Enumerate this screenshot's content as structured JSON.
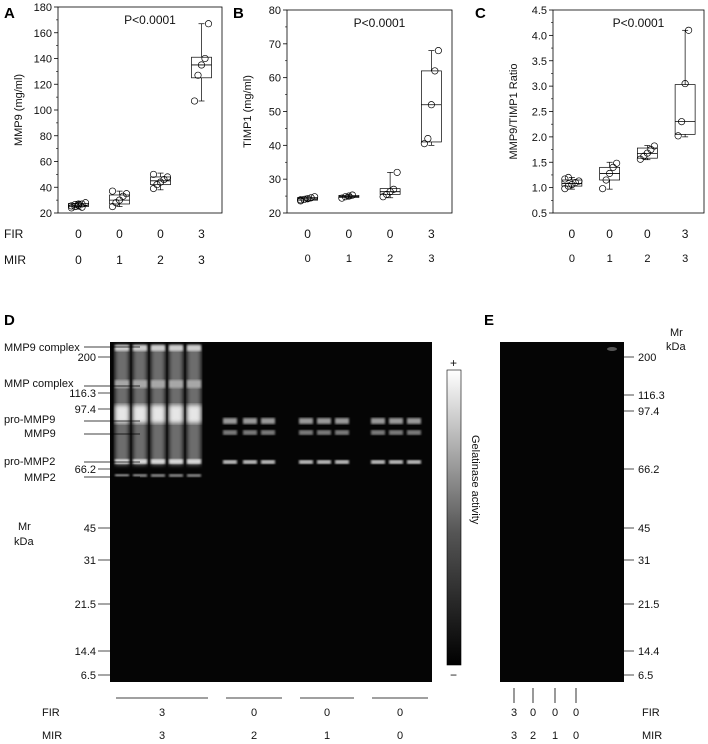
{
  "chart_data": [
    {
      "type": "box",
      "panel": "A",
      "ylabel": "MMP9 (mg/ml)",
      "annotation": "P<0.0001",
      "ylim": [
        20,
        180
      ],
      "yticks": [
        "20",
        "40",
        "60",
        "80",
        "100",
        "120",
        "140",
        "160",
        "180"
      ],
      "groups": [
        {
          "fir": "0",
          "mir": "0",
          "q1": 25,
          "median": 26,
          "q3": 27.5,
          "whisker_low": 23,
          "whisker_high": 29,
          "points": [
            24,
            25,
            26,
            27,
            28,
            25.5,
            26.5,
            27,
            24.5
          ]
        },
        {
          "fir": "0",
          "mir": "1",
          "q1": 27,
          "median": 30,
          "q3": 34,
          "whisker_low": 25,
          "whisker_high": 37,
          "points": [
            25,
            28,
            30,
            33,
            35,
            37
          ]
        },
        {
          "fir": "0",
          "mir": "2",
          "q1": 42,
          "median": 45,
          "q3": 48,
          "whisker_low": 38,
          "whisker_high": 51,
          "points": [
            39,
            42,
            44,
            46,
            48,
            50
          ]
        },
        {
          "fir": "3",
          "mir": "3",
          "q1": 125,
          "median": 135,
          "q3": 141,
          "whisker_low": 107,
          "whisker_high": 167,
          "points": [
            107,
            127,
            135,
            140,
            167
          ]
        }
      ]
    },
    {
      "type": "box",
      "panel": "B",
      "ylabel": "TIMP1 (mg/ml)",
      "annotation": "P<0.0001",
      "ylim": [
        20,
        80
      ],
      "yticks": [
        "20",
        "30",
        "40",
        "50",
        "60",
        "70",
        "80"
      ],
      "groups": [
        {
          "fir": "0",
          "mir": "0",
          "q1": 23.8,
          "median": 24.2,
          "q3": 24.6,
          "whisker_low": 23.5,
          "whisker_high": 25,
          "points": [
            23.6,
            24,
            24.2,
            24.5,
            24.8,
            23.9
          ]
        },
        {
          "fir": "0",
          "mir": "1",
          "q1": 24.6,
          "median": 24.9,
          "q3": 25.2,
          "whisker_low": 24.3,
          "whisker_high": 25.5,
          "points": [
            24.4,
            24.8,
            25,
            25.3
          ]
        },
        {
          "fir": "0",
          "mir": "2",
          "q1": 25.5,
          "median": 26.3,
          "q3": 27.2,
          "whisker_low": 24.5,
          "whisker_high": 32,
          "points": [
            24.8,
            25.5,
            26.3,
            27,
            32
          ]
        },
        {
          "fir": "3",
          "mir": "3",
          "q1": 41,
          "median": 52,
          "q3": 62,
          "whisker_low": 40,
          "whisker_high": 68,
          "points": [
            40.5,
            42,
            52,
            62,
            68
          ]
        }
      ]
    },
    {
      "type": "box",
      "panel": "C",
      "ylabel": "MMP9/TIMP1 Ratio",
      "annotation": "P<0.0001",
      "ylim": [
        0.5,
        4.5
      ],
      "yticks": [
        "0.5",
        "1.0",
        "1.5",
        "2.0",
        "2.5",
        "3.0",
        "3.5",
        "4.0",
        "4.5"
      ],
      "groups": [
        {
          "fir": "0",
          "mir": "0",
          "q1": 1.03,
          "median": 1.08,
          "q3": 1.15,
          "whisker_low": 0.97,
          "whisker_high": 1.2,
          "points": [
            0.98,
            1.03,
            1.06,
            1.1,
            1.13,
            1.17,
            1.2
          ]
        },
        {
          "fir": "0",
          "mir": "1",
          "q1": 1.15,
          "median": 1.28,
          "q3": 1.4,
          "whisker_low": 0.97,
          "whisker_high": 1.5,
          "points": [
            0.98,
            1.15,
            1.28,
            1.4,
            1.48
          ]
        },
        {
          "fir": "0",
          "mir": "2",
          "q1": 1.58,
          "median": 1.67,
          "q3": 1.78,
          "whisker_low": 1.55,
          "whisker_high": 1.83,
          "points": [
            1.56,
            1.62,
            1.68,
            1.75,
            1.82
          ]
        },
        {
          "fir": "3",
          "mir": "3",
          "q1": 2.05,
          "median": 2.3,
          "q3": 3.03,
          "whisker_low": 2.0,
          "whisker_high": 4.1,
          "points": [
            2.02,
            2.3,
            3.05,
            4.1
          ]
        }
      ]
    }
  ],
  "row_labels": {
    "fir": "FIR",
    "mir": "MIR"
  },
  "gel_d": {
    "panel": "D",
    "band_labels": [
      "MMP9 complex",
      "MMP complex",
      "pro-MMP9",
      "MMP9",
      "pro-MMP2",
      "MMP2"
    ],
    "markers": [
      "200",
      "116.3",
      "97.4",
      "66.2",
      "45",
      "31",
      "21.5",
      "14.4",
      "6.5"
    ],
    "mr_label": "Mr",
    "kda_label": "kDa",
    "scale_plus": "+",
    "scale_minus": "−",
    "scale_label": "Gelatinase activity",
    "lane_groups": [
      {
        "fir": "3",
        "mir": "3"
      },
      {
        "fir": "0",
        "mir": "2"
      },
      {
        "fir": "0",
        "mir": "1"
      },
      {
        "fir": "0",
        "mir": "0"
      }
    ]
  },
  "gel_e": {
    "panel": "E",
    "markers": [
      "200",
      "116.3",
      "97.4",
      "66.2",
      "45",
      "31",
      "21.5",
      "14.4",
      "6.5"
    ],
    "mr_label": "Mr",
    "kda_label": "kDa",
    "lanes": [
      {
        "fir": "3",
        "mir": "3"
      },
      {
        "fir": "0",
        "mir": "2"
      },
      {
        "fir": "0",
        "mir": "1"
      },
      {
        "fir": "0",
        "mir": "0"
      }
    ]
  }
}
